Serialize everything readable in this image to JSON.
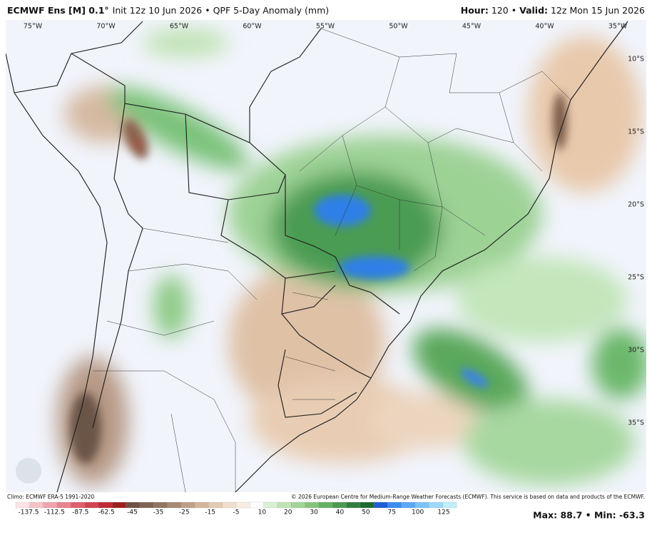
{
  "header": {
    "model": "ECMWF Ens [M] 0.1°",
    "description": "Init 12z 10 Jun 2026 • QPF 5-Day Anomaly (mm)",
    "hour_label": "Hour:",
    "hour_value": "120 •",
    "valid_label": "Valid:",
    "valid_value": "12z Mon 15 Jun 2026"
  },
  "map": {
    "longitudes": [
      "75°W",
      "70°W",
      "65°W",
      "60°W",
      "55°W",
      "50°W",
      "45°W",
      "40°W",
      "35°W"
    ],
    "latitudes": [
      "10°S",
      "15°S",
      "20°S",
      "25°S",
      "30°S",
      "35°S"
    ]
  },
  "footer": {
    "climo": "Climo: ECMWF ERA-5 1991-2020",
    "copyright": "© 2026 European Centre for Medium-Range Weather Forecasts (ECMWF). This service is based on data and products of the ECMWF.",
    "stats": "Max: 88.7 • Min: -63.3"
  },
  "legend": {
    "labels": [
      "-137.5",
      "-112.5",
      "-87.5",
      "-62.5",
      "-45",
      "-35",
      "-25",
      "-15",
      "-5",
      "10",
      "20",
      "30",
      "40",
      "50",
      "75",
      "100",
      "125"
    ],
    "colors": [
      "#fbe3e6",
      "#f6c3c9",
      "#f0a3ad",
      "#e8838f",
      "#de5f6e",
      "#d24452",
      "#c02a35",
      "#9e1f1f",
      "#6e5046",
      "#7e6455",
      "#917563",
      "#a88a74",
      "#bf9f87",
      "#d3b59b",
      "#e3cab3",
      "#f0ddcb",
      "#f7ede4",
      "#ffffff",
      "#d9f0d3",
      "#bfe3b4",
      "#a3d597",
      "#85c47b",
      "#66b062",
      "#4a9a4f",
      "#317f3f",
      "#1f6a33",
      "#1d5fd6",
      "#3a8cf0",
      "#5aa8f5",
      "#7cc3f8",
      "#9ed9fa",
      "#bfeefc"
    ]
  }
}
